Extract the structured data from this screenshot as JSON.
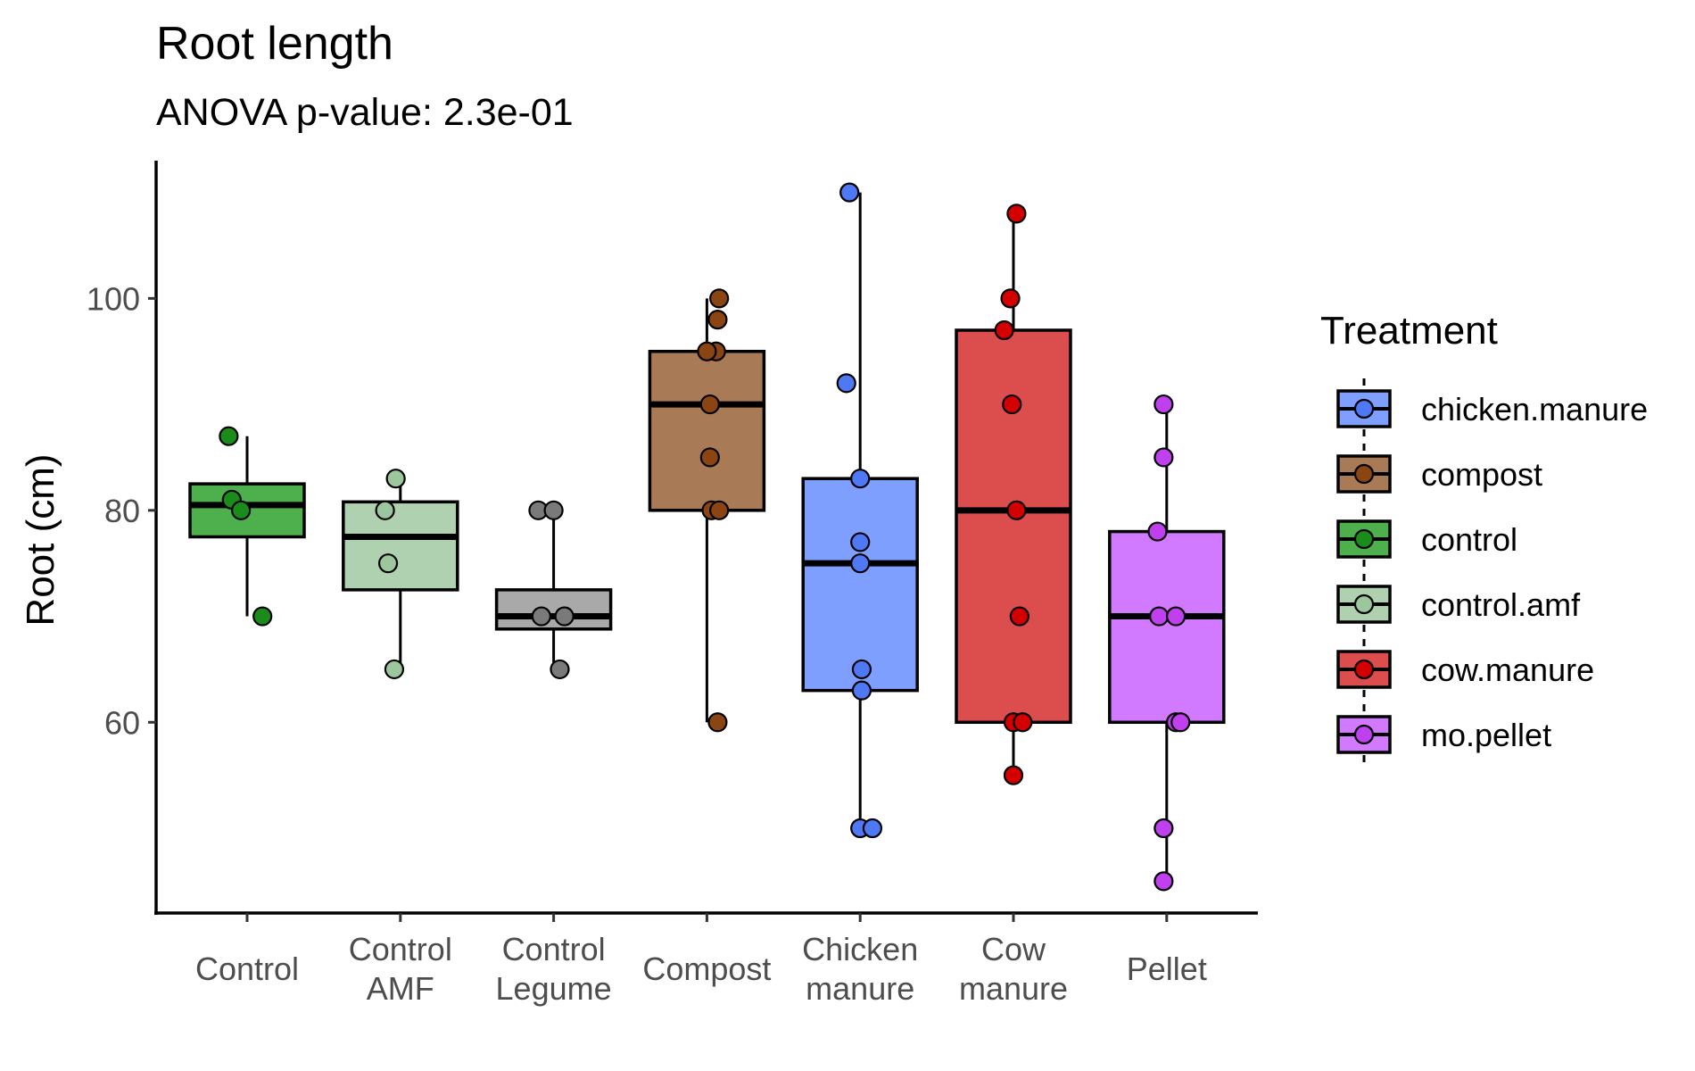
{
  "chart_data": {
    "type": "box",
    "title": "Root length",
    "subtitle": "ANOVA p-value: 2.3e-01",
    "xlabel": "",
    "ylabel": "Root (cm)",
    "ylim": [
      42,
      113
    ],
    "yticks": [
      60,
      80,
      100
    ],
    "grid": false,
    "legend": {
      "title": "Treatment",
      "position": "right",
      "entries": [
        {
          "label": "chicken.manure",
          "fill": "#7f9fff",
          "point": "#4f78f5"
        },
        {
          "label": "compost",
          "fill": "#a87a55",
          "point": "#8b4513"
        },
        {
          "label": "control",
          "fill": "#4db04d",
          "point": "#1a8c1a"
        },
        {
          "label": "control.amf",
          "fill": "#b0d1b0",
          "point": "#9cc79c"
        },
        {
          "label": "cow.manure",
          "fill": "#dc4e4e",
          "point": "#d40000"
        },
        {
          "label": "mo.pellet",
          "fill": "#d17aff",
          "point": "#c040f0"
        }
      ]
    },
    "categories": [
      {
        "label": [
          "Control"
        ],
        "fill": "#4db04d",
        "point": "#1a8c1a",
        "q1": 77.5,
        "median": 80.5,
        "q3": 82.5,
        "whisker_low": 70,
        "whisker_high": 87,
        "points": [
          [
            -0.12,
            87
          ],
          [
            -0.1,
            81
          ],
          [
            -0.04,
            80
          ],
          [
            0.1,
            70
          ]
        ]
      },
      {
        "label": [
          "Control",
          "AMF"
        ],
        "fill": "#b0d1b0",
        "point": "#9cc79c",
        "q1": 72.5,
        "median": 77.5,
        "q3": 80.8,
        "whisker_low": 65,
        "whisker_high": 83,
        "points": [
          [
            -0.1,
            80
          ],
          [
            -0.08,
            75
          ],
          [
            -0.03,
            83
          ],
          [
            -0.04,
            65
          ]
        ]
      },
      {
        "label": [
          "Control",
          "Legume"
        ],
        "fill": "#a9a9a9",
        "point": "#7a7a7a",
        "q1": 68.8,
        "median": 70,
        "q3": 72.5,
        "whisker_low": 65,
        "whisker_high": 80,
        "points": [
          [
            -0.1,
            80
          ],
          [
            0.0,
            80
          ],
          [
            -0.08,
            70
          ],
          [
            0.07,
            70
          ],
          [
            0.04,
            65
          ]
        ]
      },
      {
        "label": [
          "Compost"
        ],
        "fill": "#a87a55",
        "point": "#8b4513",
        "q1": 80,
        "median": 90,
        "q3": 95,
        "whisker_low": 60,
        "whisker_high": 100,
        "points": [
          [
            0.08,
            100
          ],
          [
            0.07,
            98
          ],
          [
            0.06,
            95
          ],
          [
            0.0,
            95
          ],
          [
            0.02,
            90
          ],
          [
            0.02,
            85
          ],
          [
            0.03,
            80
          ],
          [
            0.08,
            80
          ],
          [
            0.07,
            60
          ]
        ]
      },
      {
        "label": [
          "Chicken",
          "manure"
        ],
        "fill": "#7f9fff",
        "point": "#4f78f5",
        "q1": 63,
        "median": 75,
        "q3": 83,
        "whisker_low": 50,
        "whisker_high": 110,
        "points": [
          [
            -0.07,
            110
          ],
          [
            -0.09,
            92
          ],
          [
            0.0,
            83
          ],
          [
            0.0,
            77
          ],
          [
            0.0,
            75
          ],
          [
            0.01,
            65
          ],
          [
            0.01,
            63
          ],
          [
            0.0,
            50
          ],
          [
            0.08,
            50
          ]
        ]
      },
      {
        "label": [
          "Cow",
          "manure"
        ],
        "fill": "#dc4e4e",
        "point": "#d40000",
        "q1": 60,
        "median": 80,
        "q3": 97,
        "whisker_low": 55,
        "whisker_high": 108,
        "points": [
          [
            0.02,
            108
          ],
          [
            -0.02,
            100
          ],
          [
            -0.06,
            97
          ],
          [
            -0.01,
            90
          ],
          [
            0.02,
            80
          ],
          [
            0.04,
            70
          ],
          [
            0.0,
            60
          ],
          [
            0.06,
            60
          ],
          [
            0.0,
            55
          ]
        ]
      },
      {
        "label": [
          "Pellet"
        ],
        "fill": "#d17aff",
        "point": "#c040f0",
        "q1": 60,
        "median": 70,
        "q3": 78,
        "whisker_low": 45,
        "whisker_high": 90,
        "points": [
          [
            -0.02,
            90
          ],
          [
            -0.02,
            85
          ],
          [
            -0.06,
            78
          ],
          [
            -0.05,
            70
          ],
          [
            0.06,
            70
          ],
          [
            0.06,
            60
          ],
          [
            0.09,
            60
          ],
          [
            -0.02,
            50
          ],
          [
            -0.02,
            45
          ]
        ]
      }
    ]
  }
}
